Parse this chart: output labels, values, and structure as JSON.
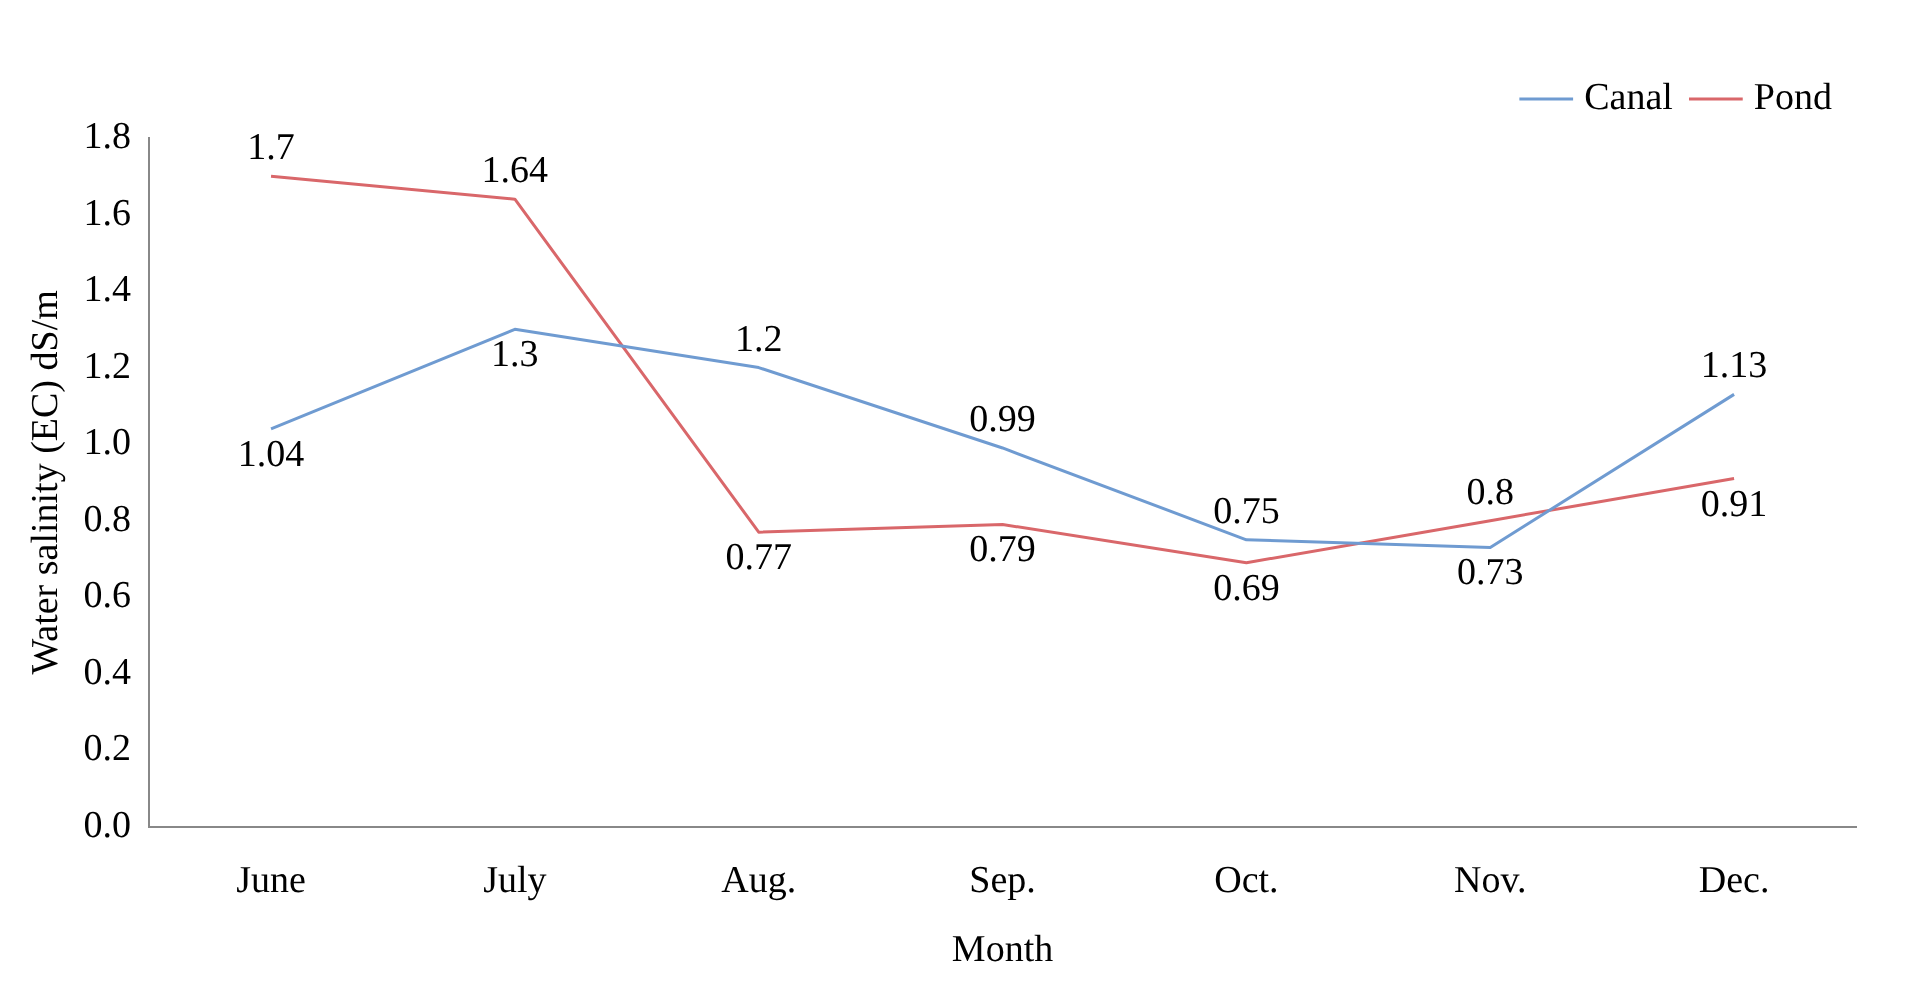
{
  "chart_data": {
    "type": "line",
    "xlabel": "Month",
    "ylabel": "Water salinity (EC) dS/m",
    "categories": [
      "June",
      "July",
      "Aug.",
      "Sep.",
      "Oct.",
      "Nov.",
      "Dec."
    ],
    "series": [
      {
        "name": "Canal",
        "color": "#6f9bd1",
        "values": [
          1.04,
          1.3,
          1.2,
          0.99,
          0.75,
          0.73,
          1.13
        ]
      },
      {
        "name": "Pond",
        "color": "#d9676a",
        "values": [
          1.7,
          1.64,
          0.77,
          0.79,
          0.69,
          0.8,
          0.91
        ]
      }
    ],
    "ylim": [
      0,
      1.8
    ],
    "yticks": [
      {
        "value": 0,
        "label": "0.0"
      },
      {
        "value": 0.2,
        "label": "0.2"
      },
      {
        "value": 0.4,
        "label": "0.4"
      },
      {
        "value": 0.6,
        "label": "0.6"
      },
      {
        "value": 0.8,
        "label": "0.8"
      },
      {
        "value": 1,
        "label": "1.0"
      },
      {
        "value": 1.2,
        "label": "1.2"
      },
      {
        "value": 1.4,
        "label": "1.4"
      },
      {
        "value": 1.6,
        "label": "1.6"
      },
      {
        "value": 1.8,
        "label": "1.8"
      }
    ],
    "grid": false,
    "legend": "top right",
    "marker": "none",
    "line_style": "solid",
    "data_labels": true
  }
}
